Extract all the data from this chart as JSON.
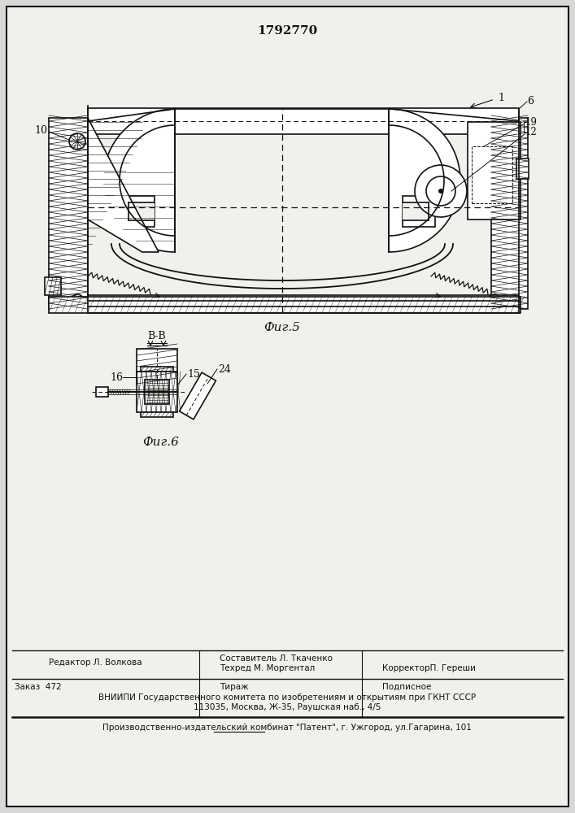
{
  "patent_number": "1792770",
  "fig5_label": "Фиг.5",
  "fig6_label": "Фиг.6",
  "section_label": "В-В",
  "editor_line": "Редактор Л. Волкова",
  "composer_line1": "Составитель Л. Ткаченко",
  "composer_line2": "Техред М. Моргентал",
  "corrector_line": "КорректорП. Гереши",
  "order_line": "Заказ  472",
  "tirazh_line": "Тираж",
  "podpisnoe_line": "Подписное",
  "vniipи_line": "ВНИИПИ Государственного комитета по изобретениям и открытиям при ГКНТ СССР",
  "address_line": "113035, Москва, Ж-35, Раушская наб., 4/5",
  "factory_line": "Производственно-издательский комбинат \"Патент\", г. Ужгород, ул.Гагарина, 101",
  "bg_color": "#d8d8d8",
  "paper_color": "#f0f0ec",
  "line_color": "#111111",
  "hatch_color": "#333333",
  "text_color": "#111111"
}
